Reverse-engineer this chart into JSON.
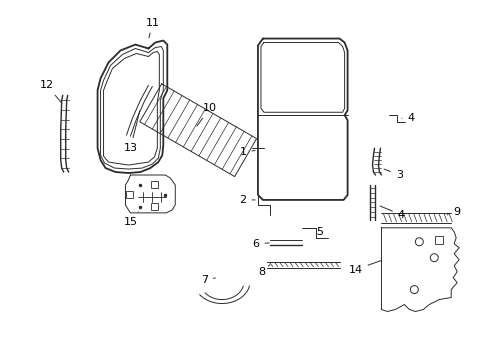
{
  "background_color": "#ffffff",
  "line_color": "#2a2a2a",
  "text_color": "#000000",
  "fig_width": 4.89,
  "fig_height": 3.6,
  "dpi": 100
}
